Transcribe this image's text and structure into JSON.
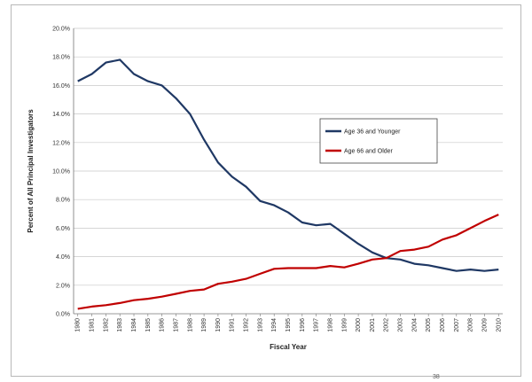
{
  "footnote_mark": "38",
  "chart_data": {
    "type": "line",
    "title": "",
    "xlabel": "Fiscal Year",
    "ylabel": "Percent of All Principal Investigators",
    "ylim": [
      0,
      20
    ],
    "yticks": [
      "0.0%",
      "2.0%",
      "4.0%",
      "6.0%",
      "8.0%",
      "10.0%",
      "12.0%",
      "14.0%",
      "16.0%",
      "18.0%",
      "20.0%"
    ],
    "grid": "horizontal",
    "legend_position": "right-center",
    "categories": [
      "1980",
      "1981",
      "1982",
      "1983",
      "1984",
      "1985",
      "1986",
      "1987",
      "1988",
      "1989",
      "1990",
      "1991",
      "1992",
      "1993",
      "1994",
      "1995",
      "1996",
      "1997",
      "1998",
      "1999",
      "2000",
      "2001",
      "2002",
      "2003",
      "2004",
      "2005",
      "2006",
      "2007",
      "2008",
      "2009",
      "2010"
    ],
    "series": [
      {
        "name": "Age 36 and Younger",
        "color": "#1f3864",
        "values": [
          16.3,
          16.8,
          17.6,
          17.8,
          16.8,
          16.3,
          16.0,
          15.1,
          14.0,
          12.2,
          10.6,
          9.6,
          8.9,
          7.9,
          7.6,
          7.1,
          6.4,
          6.2,
          6.3,
          5.6,
          4.9,
          4.3,
          3.9,
          3.8,
          3.5,
          3.4,
          3.2,
          3.0,
          3.1,
          3.0,
          3.1
        ]
      },
      {
        "name": "Age 66 and Older",
        "color": "#c00000",
        "values": [
          0.35,
          0.5,
          0.6,
          0.75,
          0.95,
          1.05,
          1.2,
          1.4,
          1.6,
          1.7,
          2.1,
          2.25,
          2.45,
          2.8,
          3.15,
          3.2,
          3.2,
          3.2,
          3.35,
          3.25,
          3.5,
          3.8,
          3.9,
          4.4,
          4.5,
          4.7,
          5.2,
          5.5,
          6.0,
          6.5,
          6.95
        ]
      }
    ]
  }
}
